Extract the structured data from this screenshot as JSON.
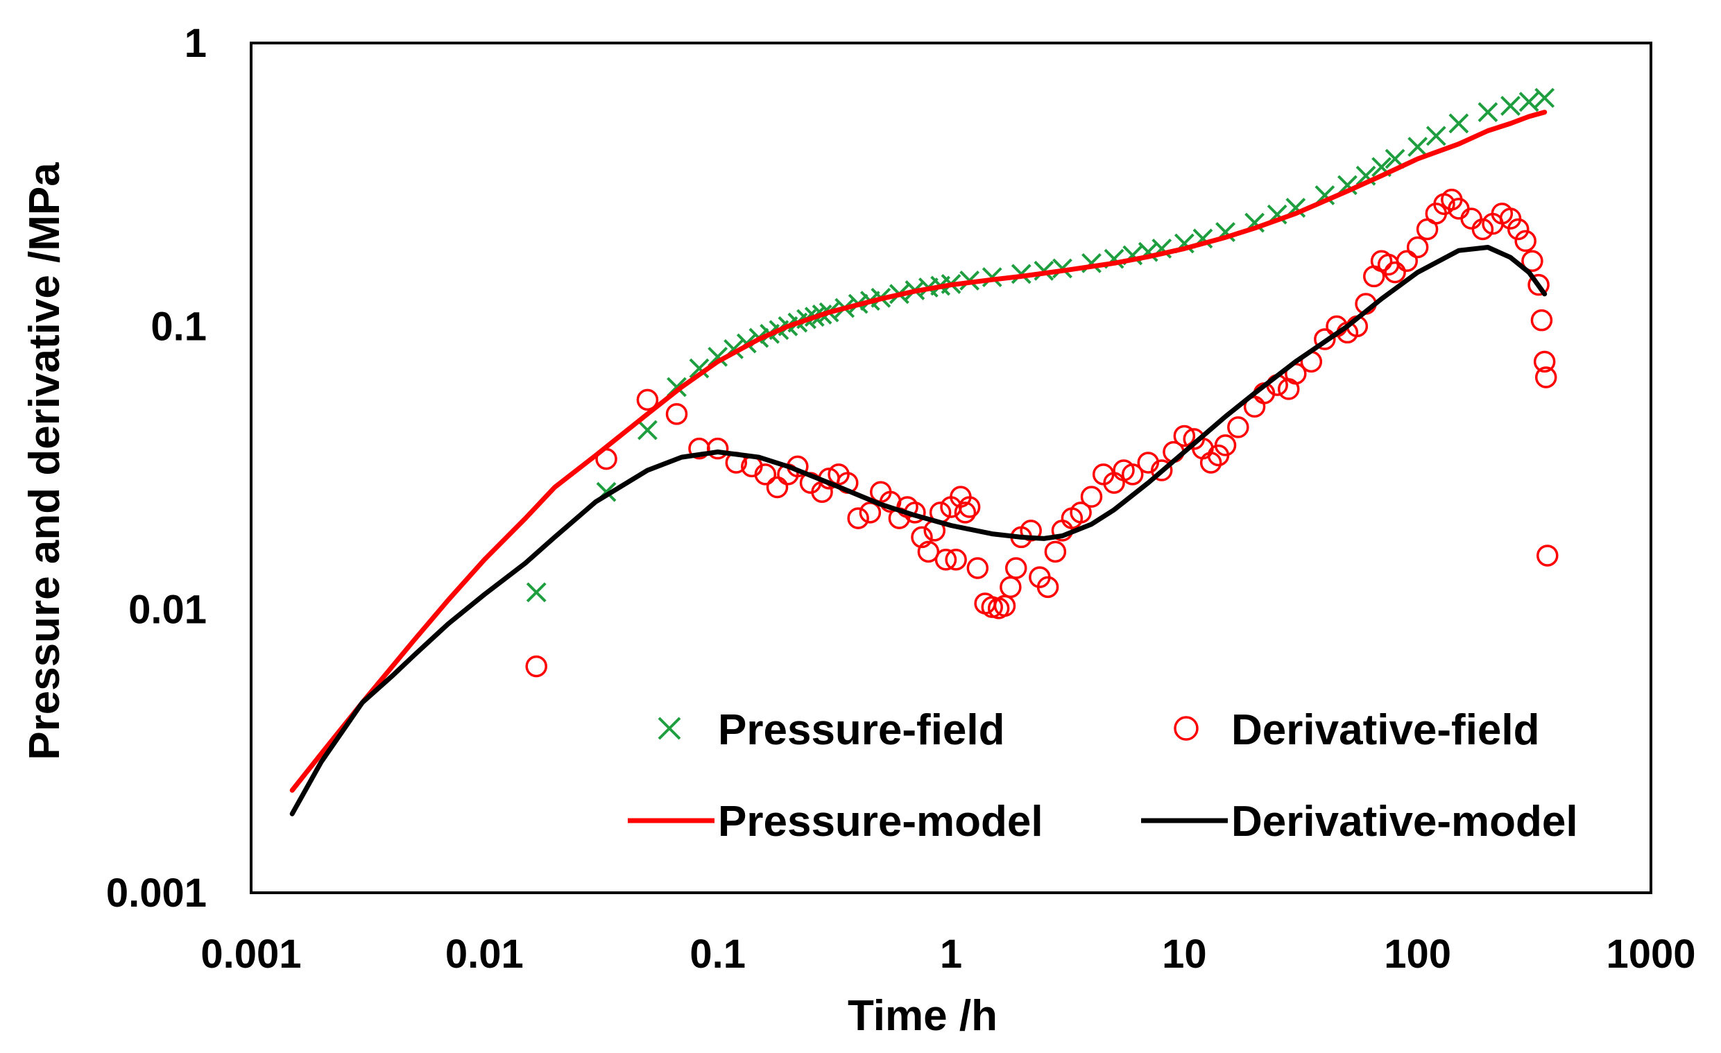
{
  "chart_data": {
    "type": "scatter",
    "scale": {
      "x": "log",
      "y": "log"
    },
    "xlabel": "Time /h",
    "ylabel": "Pressure  and derivative /MPa",
    "xlim": [
      0.001,
      1000
    ],
    "ylim": [
      0.001,
      1
    ],
    "x_ticks": [
      0.001,
      0.01,
      0.1,
      1,
      10,
      100,
      1000
    ],
    "x_tick_labels": [
      "0.001",
      "0.01",
      "0.1",
      "1",
      "10",
      "100",
      "1000"
    ],
    "y_ticks": [
      0.001,
      0.01,
      0.1,
      1
    ],
    "y_tick_labels": [
      "0.001",
      "0.01",
      "0.1",
      "1"
    ],
    "grid": false,
    "legend_position": "bottom-right",
    "colors": {
      "pressure_field": "#1e9e3e",
      "derivative_field": "#ff0000",
      "pressure_model": "#ff0000",
      "derivative_model": "#000000"
    },
    "series": [
      {
        "name": "Pressure-field",
        "type": "scatter",
        "marker": "x",
        "x": [
          0.0167,
          0.0333,
          0.05,
          0.0667,
          0.0833,
          0.1,
          0.117,
          0.133,
          0.15,
          0.167,
          0.183,
          0.2,
          0.22,
          0.24,
          0.26,
          0.28,
          0.3,
          0.35,
          0.4,
          0.45,
          0.5,
          0.6,
          0.7,
          0.8,
          0.9,
          1.0,
          1.2,
          1.5,
          2.0,
          2.5,
          3.0,
          4.0,
          5.0,
          6.0,
          7.0,
          8.0,
          10,
          12,
          15,
          20,
          25,
          30,
          40,
          50,
          60,
          70,
          80,
          100,
          120,
          150,
          200,
          250,
          300,
          350
        ],
        "y": [
          0.0115,
          0.026,
          0.043,
          0.061,
          0.071,
          0.078,
          0.083,
          0.087,
          0.091,
          0.094,
          0.097,
          0.1,
          0.103,
          0.106,
          0.108,
          0.11,
          0.112,
          0.116,
          0.12,
          0.123,
          0.126,
          0.13,
          0.134,
          0.137,
          0.139,
          0.141,
          0.145,
          0.149,
          0.153,
          0.157,
          0.16,
          0.167,
          0.173,
          0.178,
          0.183,
          0.188,
          0.196,
          0.204,
          0.215,
          0.232,
          0.248,
          0.262,
          0.29,
          0.315,
          0.34,
          0.365,
          0.39,
          0.43,
          0.47,
          0.52,
          0.57,
          0.6,
          0.62,
          0.64
        ]
      },
      {
        "name": "Derivative-field",
        "type": "scatter",
        "marker": "circle",
        "x": [
          0.0167,
          0.0333,
          0.05,
          0.0667,
          0.0833,
          0.1,
          0.12,
          0.14,
          0.16,
          0.18,
          0.2,
          0.22,
          0.25,
          0.28,
          0.3,
          0.33,
          0.36,
          0.4,
          0.45,
          0.5,
          0.55,
          0.6,
          0.65,
          0.7,
          0.75,
          0.8,
          0.85,
          0.9,
          0.95,
          1.0,
          1.05,
          1.1,
          1.15,
          1.2,
          1.3,
          1.4,
          1.5,
          1.6,
          1.7,
          1.8,
          1.9,
          2.0,
          2.2,
          2.4,
          2.6,
          2.8,
          3.0,
          3.3,
          3.6,
          4.0,
          4.5,
          5.0,
          5.5,
          6.0,
          7.0,
          8.0,
          9.0,
          10,
          11,
          12,
          13,
          14,
          15,
          17,
          20,
          22,
          25,
          28,
          30,
          35,
          40,
          45,
          50,
          55,
          60,
          65,
          70,
          75,
          80,
          90,
          100,
          110,
          120,
          130,
          140,
          150,
          170,
          190,
          210,
          230,
          250,
          270,
          290,
          310,
          330,
          340,
          350,
          355,
          360
        ],
        "y": [
          0.0063,
          0.034,
          0.055,
          0.049,
          0.037,
          0.037,
          0.033,
          0.032,
          0.03,
          0.027,
          0.03,
          0.032,
          0.028,
          0.026,
          0.029,
          0.03,
          0.028,
          0.021,
          0.022,
          0.026,
          0.024,
          0.021,
          0.023,
          0.022,
          0.018,
          0.016,
          0.019,
          0.022,
          0.015,
          0.023,
          0.015,
          0.025,
          0.022,
          0.023,
          0.014,
          0.0105,
          0.0102,
          0.0101,
          0.0103,
          0.012,
          0.014,
          0.018,
          0.019,
          0.013,
          0.012,
          0.016,
          0.019,
          0.021,
          0.022,
          0.025,
          0.03,
          0.028,
          0.031,
          0.03,
          0.033,
          0.031,
          0.036,
          0.041,
          0.04,
          0.037,
          0.033,
          0.035,
          0.038,
          0.044,
          0.052,
          0.058,
          0.062,
          0.06,
          0.068,
          0.075,
          0.09,
          0.1,
          0.095,
          0.1,
          0.12,
          0.15,
          0.17,
          0.165,
          0.155,
          0.17,
          0.19,
          0.22,
          0.25,
          0.27,
          0.28,
          0.26,
          0.24,
          0.22,
          0.23,
          0.25,
          0.24,
          0.22,
          0.2,
          0.17,
          0.14,
          0.105,
          0.075,
          0.066,
          0.0155
        ]
      },
      {
        "name": "Pressure-model",
        "type": "line",
        "x": [
          0.0015,
          0.002,
          0.003,
          0.005,
          0.007,
          0.01,
          0.015,
          0.02,
          0.03,
          0.05,
          0.07,
          0.1,
          0.15,
          0.2,
          0.3,
          0.5,
          0.7,
          1,
          1.5,
          2,
          3,
          5,
          7,
          10,
          15,
          20,
          30,
          50,
          70,
          100,
          150,
          200,
          250,
          300,
          350
        ],
        "y": [
          0.0023,
          0.0031,
          0.0047,
          0.0078,
          0.0108,
          0.015,
          0.021,
          0.027,
          0.035,
          0.049,
          0.061,
          0.075,
          0.09,
          0.1,
          0.112,
          0.125,
          0.133,
          0.14,
          0.146,
          0.15,
          0.157,
          0.167,
          0.176,
          0.188,
          0.206,
          0.222,
          0.25,
          0.3,
          0.34,
          0.39,
          0.44,
          0.49,
          0.52,
          0.55,
          0.57
        ]
      },
      {
        "name": "Derivative-model",
        "type": "line",
        "x": [
          0.0015,
          0.002,
          0.003,
          0.004,
          0.005,
          0.007,
          0.01,
          0.015,
          0.02,
          0.03,
          0.05,
          0.07,
          0.1,
          0.15,
          0.2,
          0.3,
          0.5,
          0.7,
          1,
          1.5,
          2,
          2.5,
          3,
          4,
          5,
          7,
          10,
          15,
          20,
          30,
          50,
          70,
          100,
          150,
          200,
          250,
          300,
          350
        ],
        "y": [
          0.0019,
          0.0029,
          0.0047,
          0.0058,
          0.0069,
          0.0089,
          0.0113,
          0.0146,
          0.018,
          0.024,
          0.031,
          0.0345,
          0.036,
          0.0345,
          0.032,
          0.028,
          0.0235,
          0.0215,
          0.0198,
          0.0185,
          0.018,
          0.0178,
          0.0182,
          0.02,
          0.0225,
          0.028,
          0.036,
          0.048,
          0.058,
          0.075,
          0.1,
          0.125,
          0.155,
          0.185,
          0.19,
          0.175,
          0.155,
          0.13
        ]
      }
    ]
  }
}
